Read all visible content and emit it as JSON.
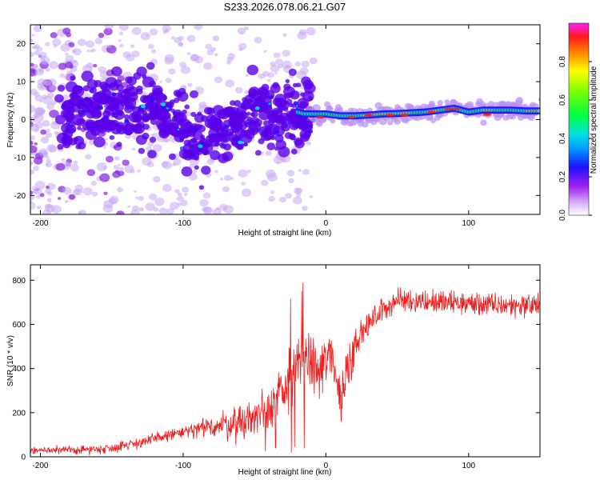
{
  "title": "S233.2026.078.06.21.G07",
  "colors": {
    "snr_line": "#ee1c1c",
    "spectral_low": "#c9a8f5",
    "spectral_mid": "#3b00ff",
    "spectral_high": "#ff1a1a"
  },
  "chart_data": [
    {
      "type": "heatmap",
      "title": "S233.2026.078.06.21.G07",
      "xlabel": "Height of straight line (km)",
      "ylabel": "Frequency (Hz)",
      "xlim": [
        -207,
        150
      ],
      "ylim": [
        -25,
        25
      ],
      "xticks": [
        -200,
        -100,
        0,
        100
      ],
      "yticks": [
        -20,
        -10,
        0,
        10,
        20
      ],
      "xtick_labels": [
        "-200",
        "-100",
        "0",
        "100"
      ],
      "ytick_labels": [
        "-20",
        "-10",
        "0",
        "10",
        "20"
      ],
      "ridge": {
        "x": [
          -180,
          -165,
          -150,
          -140,
          -130,
          -120,
          -110,
          -100,
          -95,
          -90,
          -85,
          -80,
          -75,
          -70,
          -65,
          -60,
          -55,
          -50,
          -45,
          -40,
          -35,
          -30,
          -25,
          -20,
          -15,
          -10,
          0,
          10,
          20,
          30,
          40,
          50,
          60,
          70,
          80,
          90,
          100,
          110,
          120,
          130,
          140,
          150
        ],
        "freq": [
          1,
          2,
          3,
          3.5,
          3,
          3,
          2.5,
          -3,
          -5,
          -6,
          -7,
          -5,
          -4,
          -3,
          -2,
          -1,
          0,
          3,
          4,
          2,
          1,
          1.5,
          1.5,
          2,
          1.5,
          1.5,
          1.5,
          1,
          1,
          1.2,
          1.5,
          1.6,
          1.8,
          2,
          2.5,
          3,
          2,
          2.5,
          2.5,
          2.5,
          2.3,
          2.3
        ]
      },
      "colorbar": {
        "label": "Normalized spectral amplitude",
        "range": [
          0,
          1
        ],
        "ticks": [
          0.0,
          0.2,
          0.4,
          0.6,
          0.8
        ],
        "tick_labels": [
          "0.0",
          "0.2",
          "0.4",
          "0.6",
          "0.8"
        ]
      }
    },
    {
      "type": "line",
      "xlabel": "Height of straight line (km)",
      "ylabel": "SNR (10 * v/v)",
      "xlim": [
        -207,
        150
      ],
      "ylim": [
        0,
        870
      ],
      "xticks": [
        -200,
        -100,
        0,
        100
      ],
      "yticks": [
        0,
        200,
        400,
        600,
        800
      ],
      "xtick_labels": [
        "-200",
        "-100",
        "0",
        "100"
      ],
      "ytick_labels": [
        "0",
        "200",
        "400",
        "600",
        "800"
      ],
      "trend": {
        "x": [
          -207,
          -180,
          -160,
          -150,
          -140,
          -130,
          -120,
          -110,
          -100,
          -90,
          -80,
          -70,
          -60,
          -50,
          -40,
          -30,
          -20,
          -15,
          -10,
          -5,
          0,
          5,
          10,
          15,
          20,
          30,
          40,
          50,
          60,
          80,
          100,
          120,
          150
        ],
        "y": [
          30,
          30,
          35,
          40,
          55,
          65,
          80,
          100,
          110,
          120,
          140,
          145,
          160,
          180,
          230,
          300,
          400,
          460,
          420,
          380,
          430,
          470,
          250,
          400,
          520,
          600,
          670,
          710,
          710,
          700,
          695,
          685,
          690
        ]
      }
    }
  ]
}
